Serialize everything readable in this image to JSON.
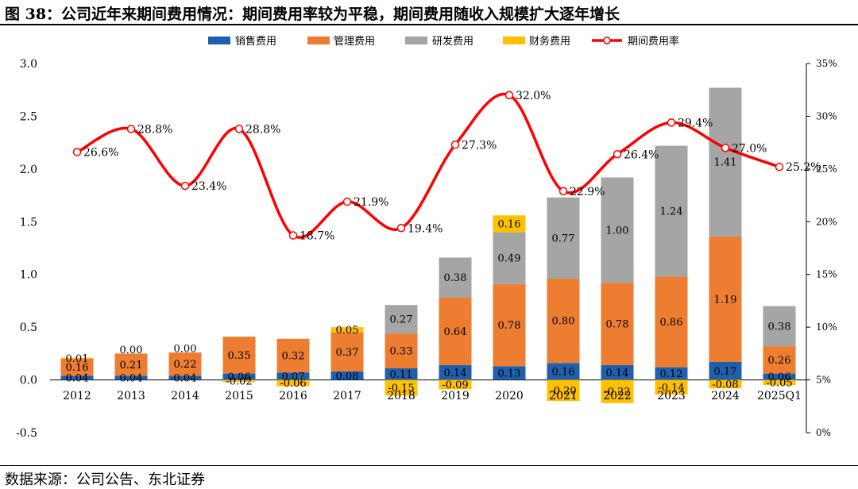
{
  "header": {
    "title": "图 38：公司近年来期间费用情况：期间费用率较为平稳，期间费用随收入规模扩大逐年增长"
  },
  "footer": {
    "source": "数据来源：公司公告、东北证券"
  },
  "colors": {
    "sales": "#1f5fad",
    "admin": "#ed7d31",
    "rd": "#a5a5a5",
    "finance": "#ffc000",
    "rate": "#ff0000"
  },
  "chart_data": {
    "type": "bar",
    "categories": [
      "2012",
      "2013",
      "2014",
      "2015",
      "2016",
      "2017",
      "2018",
      "2019",
      "2020",
      "2021",
      "2022",
      "2023",
      "2024",
      "2025Q1"
    ],
    "left_axis": {
      "ylim": [
        -0.5,
        3.0
      ],
      "ticks": [
        "-0.5",
        "0.0",
        "0.5",
        "1.0",
        "1.5",
        "2.0",
        "2.5",
        "3.0"
      ]
    },
    "right_axis": {
      "ylim": [
        0,
        35
      ],
      "ticks": [
        "0%",
        "5%",
        "10%",
        "15%",
        "20%",
        "25%",
        "30%",
        "35%"
      ]
    },
    "legend_position": "top",
    "legend": [
      "销售费用",
      "管理费用",
      "研发费用",
      "财务费用",
      "期间费用率"
    ],
    "series": [
      {
        "name": "销售费用",
        "values": [
          0.04,
          0.04,
          0.04,
          0.06,
          0.07,
          0.08,
          0.11,
          0.14,
          0.13,
          0.16,
          0.14,
          0.12,
          0.17,
          0.06
        ],
        "labels": [
          "0.04",
          "0.04",
          "0.04",
          "0.06",
          "0.07",
          "0.08",
          "0.11",
          "0.14",
          "0.13",
          "0.16",
          "0.14",
          "0.12",
          "0.17",
          "0.06"
        ]
      },
      {
        "name": "管理费用",
        "values": [
          0.16,
          0.21,
          0.22,
          0.35,
          0.32,
          0.37,
          0.33,
          0.64,
          0.78,
          0.8,
          0.78,
          0.86,
          1.19,
          0.26
        ],
        "labels": [
          "0.16",
          "0.21",
          "0.22",
          "0.35",
          "0.32",
          "0.37",
          "0.33",
          "0.64",
          "0.78",
          "0.80",
          "0.78",
          "0.86",
          "1.19",
          "0.26"
        ]
      },
      {
        "name": "研发费用",
        "values": [
          0,
          0,
          0,
          0,
          0,
          0,
          0.27,
          0.38,
          0.49,
          0.77,
          1.0,
          1.24,
          1.41,
          0.38
        ],
        "labels": [
          "",
          "",
          "",
          "",
          "",
          "",
          "0.27",
          "0.38",
          "0.49",
          "0.77",
          "1.00",
          "1.24",
          "1.41",
          "0.38"
        ]
      },
      {
        "name": "财务费用",
        "values": [
          0.01,
          0.0,
          0.0,
          -0.02,
          -0.06,
          0.05,
          -0.15,
          -0.09,
          0.16,
          -0.2,
          -0.22,
          -0.14,
          -0.08,
          -0.05
        ],
        "labels": [
          "0.01",
          "0.00",
          "0.00",
          "-0.02",
          "-0.06",
          "0.05",
          "-0.15",
          "-0.09",
          "0.16",
          "-0.20",
          "-0.22",
          "-0.14",
          "-0.08",
          "-0.05"
        ]
      },
      {
        "name": "期间费用率",
        "type": "line",
        "axis": "right",
        "values": [
          26.6,
          28.8,
          23.4,
          28.8,
          18.7,
          21.9,
          19.4,
          27.3,
          32.0,
          22.9,
          26.4,
          29.4,
          27.0,
          25.2
        ],
        "labels": [
          "26.6%",
          "28.8%",
          "23.4%",
          "28.8%",
          "18.7%",
          "21.9%",
          "19.4%",
          "27.3%",
          "32.0%",
          "22.9%",
          "26.4%",
          "29.4%",
          "27.0%",
          "25.2%"
        ]
      }
    ]
  }
}
